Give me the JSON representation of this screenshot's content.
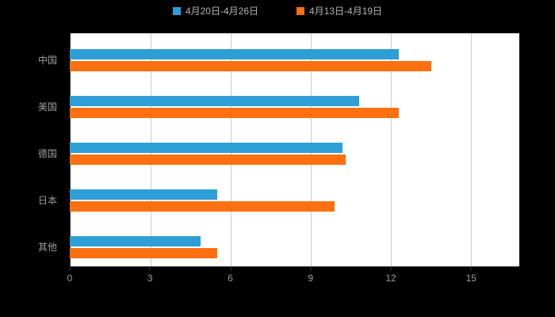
{
  "chart_data": {
    "type": "bar",
    "orientation": "horizontal",
    "title": "",
    "categories": [
      "中国",
      "美国",
      "德国",
      "日本",
      "其他"
    ],
    "series": [
      {
        "name": "4月20日-4月26日",
        "color": "#2E9FD6",
        "values": [
          12.3,
          10.8,
          10.2,
          5.5,
          4.9
        ]
      },
      {
        "name": "4月13日-4月19日",
        "color": "#FB7112",
        "values": [
          13.5,
          12.3,
          10.3,
          9.9,
          5.5
        ]
      }
    ],
    "xticks": [
      0,
      3,
      6,
      9,
      12,
      15
    ],
    "xlim": [
      0,
      16.8
    ],
    "grid": true,
    "legend_position": "top",
    "background": "#000000",
    "plot_background": "#FFFFFF"
  }
}
